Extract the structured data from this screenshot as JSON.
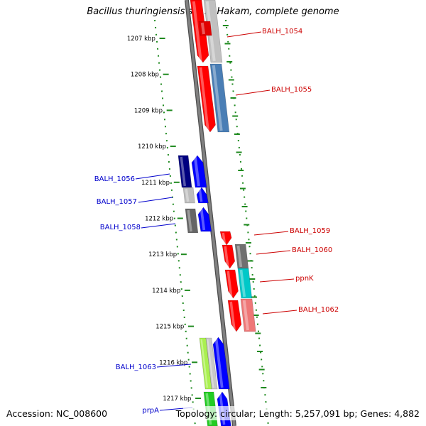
{
  "title": "Bacillus thuringiensis str. Al Hakam, complete genome",
  "accession": "Accession: NC_008600",
  "summary": "Topology: circular; Length: 5,257,091 bp; Genes: 4,882",
  "colors": {
    "ruler": "#1f8a1f",
    "backbone": "#808080",
    "forward_label": "#cc0000",
    "reverse_label": "#0000cc"
  },
  "ruler_labels": [
    "1207 kbp",
    "1208 kbp",
    "1209 kbp",
    "1210 kbp",
    "1211 kbp",
    "1212 kbp",
    "1213 kbp",
    "1214 kbp",
    "1215 kbp",
    "1216 kbp",
    "1217 kbp"
  ],
  "gene_labels": [
    {
      "name": "BALH_1054",
      "strand": "forward"
    },
    {
      "name": "BALH_1055",
      "strand": "forward"
    },
    {
      "name": "BALH_1056",
      "strand": "reverse"
    },
    {
      "name": "BALH_1057",
      "strand": "reverse"
    },
    {
      "name": "BALH_1058",
      "strand": "reverse"
    },
    {
      "name": "BALH_1059",
      "strand": "forward"
    },
    {
      "name": "BALH_1060",
      "strand": "forward"
    },
    {
      "name": "ppnK",
      "strand": "forward"
    },
    {
      "name": "BALH_1062",
      "strand": "forward"
    },
    {
      "name": "BALH_1063",
      "strand": "reverse"
    },
    {
      "name": "prpA",
      "strand": "reverse"
    }
  ]
}
